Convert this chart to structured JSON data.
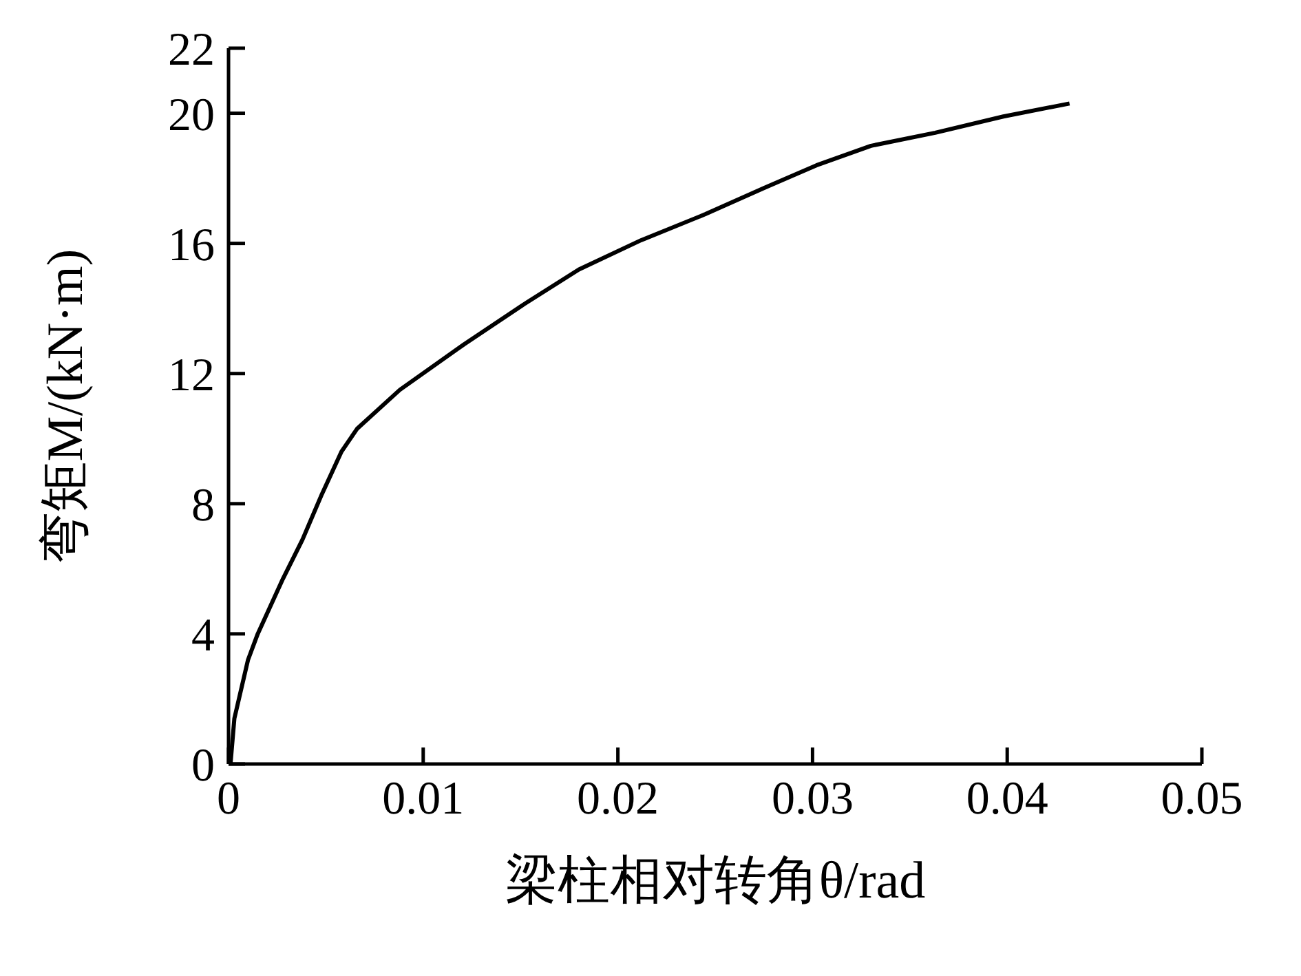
{
  "chart_data": {
    "type": "line",
    "xlabel": "梁柱相对转角θ/rad",
    "ylabel": "弯矩M/(kN·m)",
    "xlim": [
      0,
      0.05
    ],
    "xticks": [
      0,
      0.01,
      0.02,
      0.03,
      0.04,
      0.05
    ],
    "ylim": [
      0,
      22
    ],
    "yticks": [
      0,
      4,
      8,
      12,
      16,
      20,
      22
    ],
    "marker": "none",
    "line_style": "solid",
    "series": [
      {
        "color": "#000000",
        "x": [
          0.0001,
          0.0003,
          0.001,
          0.0015,
          0.0028,
          0.0038,
          0.0048,
          0.0058,
          0.0066,
          0.0088,
          0.0121,
          0.0151,
          0.018,
          0.0212,
          0.0245,
          0.0275,
          0.0302,
          0.033,
          0.0363,
          0.0398,
          0.0432
        ],
        "values": [
          0,
          1.4,
          3.2,
          4.0,
          5.7,
          6.9,
          8.3,
          9.6,
          10.3,
          11.5,
          12.9,
          14.1,
          15.2,
          16.1,
          16.9,
          17.7,
          18.4,
          19.0,
          19.4,
          19.9,
          20.3
        ]
      }
    ]
  }
}
